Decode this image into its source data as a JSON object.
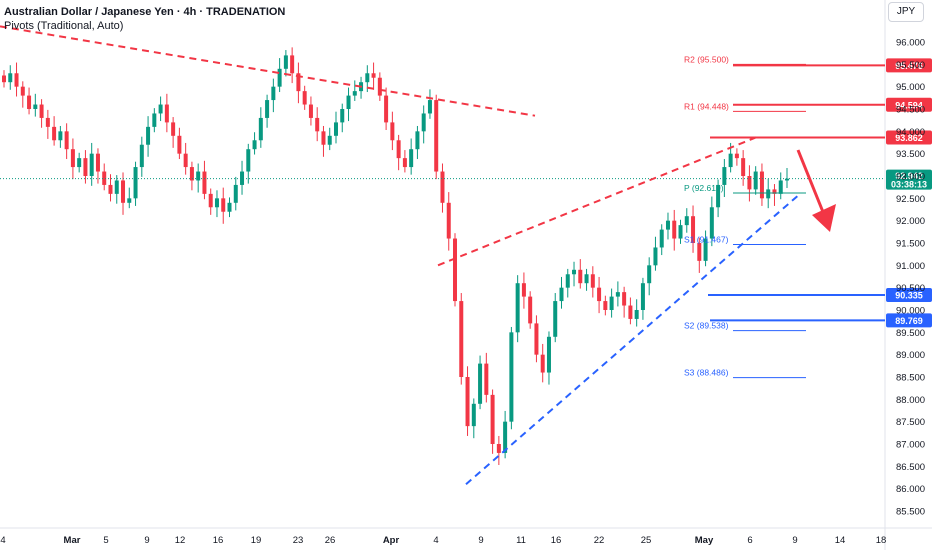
{
  "header": {
    "title": "Australian Dollar / Japanese Yen · 4h · TRADENATION",
    "indicator": "Pivots (Traditional, Auto)"
  },
  "currency_button": "JPY",
  "colors": {
    "up": "#089981",
    "down": "#f23645",
    "resistance": "#f23645",
    "support": "#2962ff",
    "pivot": "#089981",
    "r_pivot": "#f23645",
    "s_pivot": "#2962ff"
  },
  "chart_data": {
    "type": "candlestick",
    "symbol": "AUDJPY",
    "timeframe": "4h",
    "ylim": [
      85.2,
      96.4
    ],
    "y_ticks": [
      "96.000",
      "95.500",
      "95.000",
      "94.500",
      "94.000",
      "93.500",
      "93.000",
      "92.500",
      "92.000",
      "91.500",
      "91.000",
      "90.500",
      "90.000",
      "89.500",
      "89.000",
      "88.500",
      "88.000",
      "87.500",
      "87.000",
      "86.500",
      "86.000",
      "85.500"
    ],
    "x_ticks": [
      "4",
      "Mar",
      "5",
      "9",
      "12",
      "16",
      "19",
      "23",
      "26",
      "Apr",
      "4",
      "9",
      "11",
      "16",
      "22",
      "25",
      "May",
      "6",
      "9",
      "14",
      "18"
    ],
    "current_price": {
      "value": "92.942",
      "countdown": "03:38:13"
    },
    "close_series": [
      95.1,
      95.3,
      95.0,
      94.8,
      94.5,
      94.6,
      94.3,
      94.1,
      93.8,
      94.0,
      93.6,
      93.2,
      93.4,
      93.0,
      93.5,
      93.1,
      92.8,
      92.6,
      92.9,
      92.4,
      92.5,
      93.2,
      93.7,
      94.1,
      94.4,
      94.6,
      94.2,
      93.9,
      93.5,
      93.2,
      92.9,
      93.1,
      92.6,
      92.3,
      92.5,
      92.2,
      92.4,
      92.8,
      93.1,
      93.6,
      93.8,
      94.3,
      94.7,
      95.0,
      95.4,
      95.7,
      95.3,
      94.9,
      94.6,
      94.3,
      94.0,
      93.7,
      93.9,
      94.2,
      94.5,
      94.8,
      94.9,
      95.1,
      95.3,
      95.2,
      94.8,
      94.2,
      93.8,
      93.4,
      93.2,
      93.6,
      94.0,
      94.4,
      94.7,
      93.1,
      92.4,
      91.6,
      90.2,
      88.5,
      87.4,
      87.9,
      88.8,
      88.1,
      87.0,
      86.8,
      87.5,
      89.5,
      90.6,
      90.3,
      89.7,
      89.0,
      88.6,
      89.4,
      90.2,
      90.5,
      90.8,
      90.9,
      90.6,
      90.8,
      90.5,
      90.2,
      90.0,
      90.3,
      90.4,
      90.1,
      89.8,
      90.0,
      90.6,
      91.0,
      91.4,
      91.8,
      92.0,
      91.6,
      91.9,
      92.1,
      91.5,
      91.1,
      91.6,
      92.3,
      92.8,
      93.2,
      93.5,
      93.4,
      93.0,
      92.7,
      93.1,
      92.5,
      92.7,
      92.6,
      92.9,
      92.94
    ],
    "annotations": [
      {
        "type": "trendline",
        "name": "upper-resistance",
        "style": "dashed",
        "color": "red"
      },
      {
        "type": "trendline",
        "name": "rising-wedge-top",
        "style": "dashed",
        "color": "red"
      },
      {
        "type": "trendline",
        "name": "rising-support",
        "style": "dashed",
        "color": "blue"
      },
      {
        "type": "arrow",
        "direction": "down",
        "color": "red"
      }
    ],
    "price_levels": [
      {
        "value": "95.476",
        "color": "#f23645"
      },
      {
        "value": "94.594",
        "color": "#f23645"
      },
      {
        "value": "93.862",
        "color": "#f23645"
      },
      {
        "value": "90.335",
        "color": "#2962ff"
      },
      {
        "value": "89.769",
        "color": "#2962ff"
      }
    ],
    "pivots": [
      {
        "label": "R2 (95.500)",
        "value": 95.5,
        "kind": "r"
      },
      {
        "label": "R1 (94.448)",
        "value": 94.448,
        "kind": "r"
      },
      {
        "label": "P (92.619)",
        "value": 92.619,
        "kind": "p"
      },
      {
        "label": "S1 (91.467)",
        "value": 91.467,
        "kind": "s"
      },
      {
        "label": "S2 (89.538)",
        "value": 89.538,
        "kind": "s"
      },
      {
        "label": "S3 (88.486)",
        "value": 88.486,
        "kind": "s"
      }
    ]
  }
}
